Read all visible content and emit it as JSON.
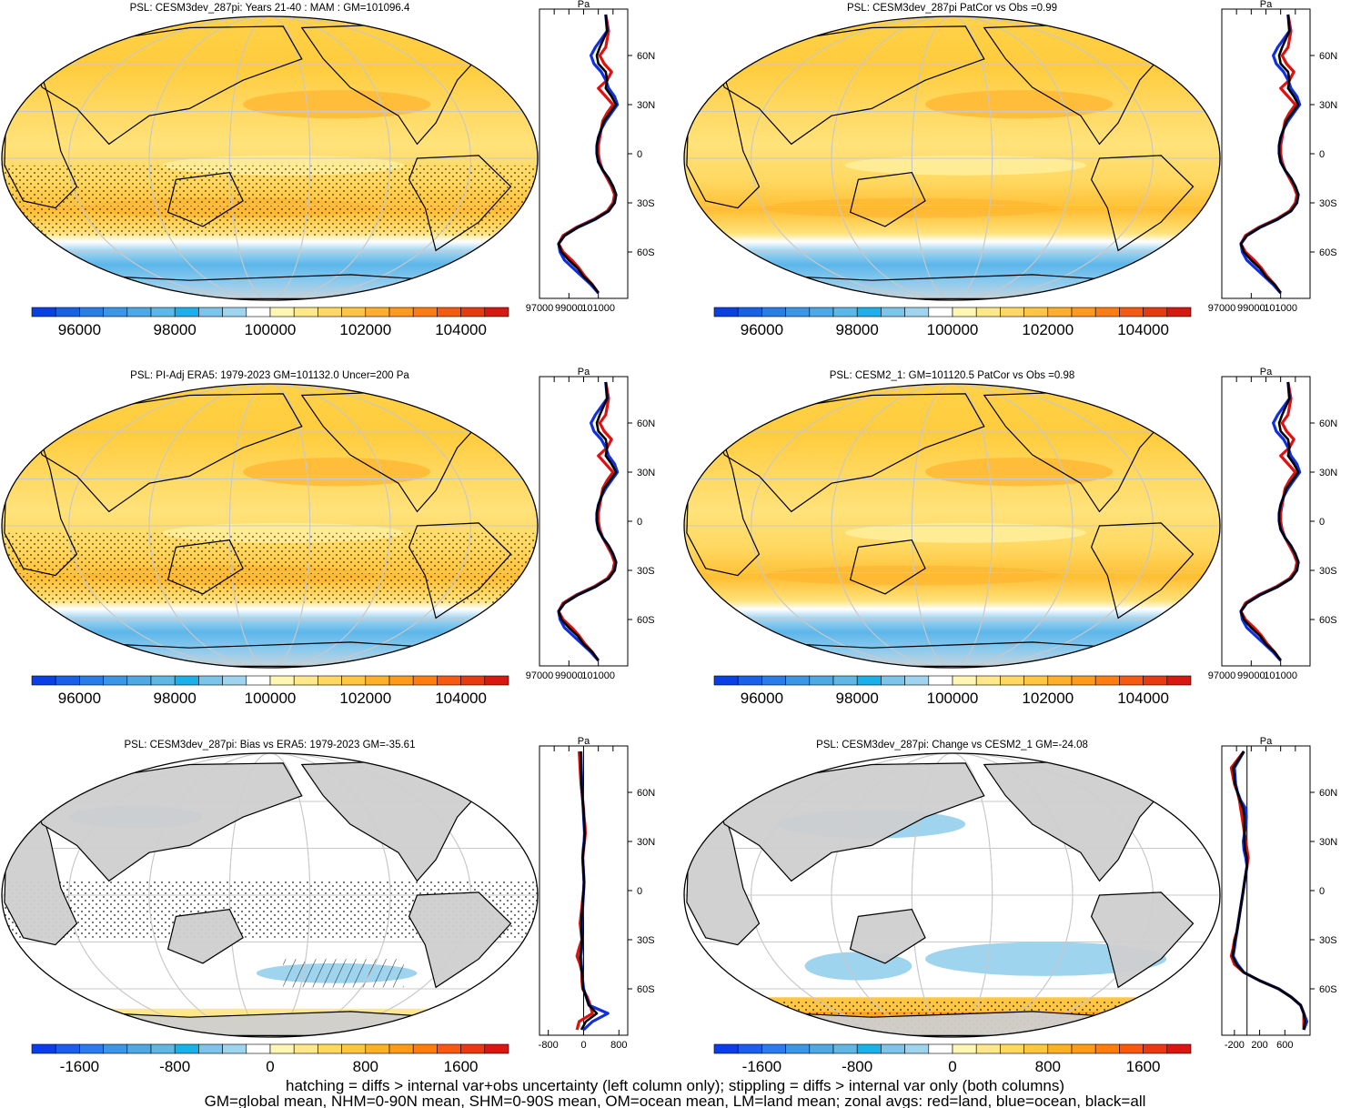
{
  "chart_data": {
    "type": "map-panel-grid",
    "palette_abs": [
      "#0b3fe6",
      "#1a5fe8",
      "#2a7ce8",
      "#3b96e6",
      "#4ea8e4",
      "#5fb7e6",
      "#1bb0ea",
      "#7cc4ea",
      "#9fd4ee",
      "#ffffff",
      "#fff6b3",
      "#ffe88a",
      "#ffd862",
      "#ffc642",
      "#ffb02a",
      "#ff9a1a",
      "#ff7d10",
      "#f55a10",
      "#e83a10",
      "#d81810"
    ],
    "panels": [
      {
        "id": "p1",
        "title": "PSL: CESM3dev_287pi: Years 21-40 : MAM : GM=101096.4",
        "kind": "abs",
        "colorbar_labels": [
          "96000",
          "98000",
          "100000",
          "102000",
          "104000"
        ],
        "lat_labels": [
          "60N",
          "30N",
          "0",
          "30S",
          "60S"
        ],
        "zonal_unit": "Pa",
        "zonal_xticks": [
          "97000",
          "99000",
          "101000"
        ],
        "zonal_range": [
          97000,
          103000
        ]
      },
      {
        "id": "p2",
        "title": "PSL: CESM3dev_287pi PatCor vs Obs =0.99",
        "kind": "abs",
        "colorbar_labels": [
          "96000",
          "98000",
          "100000",
          "102000",
          "104000"
        ],
        "lat_labels": [
          "60N",
          "30N",
          "0",
          "30S",
          "60S"
        ],
        "zonal_unit": "Pa",
        "zonal_xticks": [
          "97000",
          "99000",
          "101000"
        ],
        "zonal_range": [
          97000,
          103000
        ]
      },
      {
        "id": "p3",
        "title": "PSL: PI-Adj ERA5: 1979-2023 GM=101132.0 Uncer=200 Pa",
        "kind": "abs",
        "colorbar_labels": [
          "96000",
          "98000",
          "100000",
          "102000",
          "104000"
        ],
        "lat_labels": [
          "60N",
          "30N",
          "0",
          "30S",
          "60S"
        ],
        "zonal_unit": "Pa",
        "zonal_xticks": [
          "97000",
          "99000",
          "101000"
        ],
        "zonal_range": [
          97000,
          103000
        ]
      },
      {
        "id": "p4",
        "title": "PSL: CESM2_1: GM=101120.5 PatCor vs Obs =0.98",
        "kind": "abs",
        "colorbar_labels": [
          "96000",
          "98000",
          "100000",
          "102000",
          "104000"
        ],
        "lat_labels": [
          "60N",
          "30N",
          "0",
          "30S",
          "60S"
        ],
        "zonal_unit": "Pa",
        "zonal_xticks": [
          "97000",
          "99000",
          "101000"
        ],
        "zonal_range": [
          97000,
          103000
        ]
      },
      {
        "id": "p5",
        "title": "PSL: CESM3dev_287pi: Bias vs ERA5: 1979-2023 GM=-35.61",
        "kind": "diff",
        "colorbar_labels": [
          "-1600",
          "-800",
          "0",
          "800",
          "1600"
        ],
        "lat_labels": [
          "60N",
          "30N",
          "0",
          "30S",
          "60S"
        ],
        "zonal_unit": "Pa",
        "zonal_xticks": [
          "-800",
          "0",
          "800"
        ],
        "zonal_range": [
          -1000,
          1000
        ]
      },
      {
        "id": "p6",
        "title": "PSL: CESM3dev_287pi: Change vs CESM2_1 GM=-24.08",
        "kind": "diff",
        "colorbar_labels": [
          "-1600",
          "-800",
          "0",
          "800",
          "1600"
        ],
        "lat_labels": [
          "60N",
          "30N",
          "0",
          "30S",
          "60S"
        ],
        "zonal_unit": "Pa",
        "zonal_xticks": [
          "-200",
          "200",
          "600"
        ],
        "zonal_range": [
          -400,
          1000
        ]
      }
    ],
    "zonal_series": [
      {
        "name": "land",
        "color": "#e01010"
      },
      {
        "name": "ocean",
        "color": "#1030e0"
      },
      {
        "name": "all",
        "color": "#000000"
      }
    ],
    "zonal_abs_profile": {
      "lat": [
        85,
        75,
        65,
        60,
        55,
        50,
        45,
        40,
        35,
        30,
        25,
        20,
        15,
        10,
        5,
        0,
        -5,
        -10,
        -15,
        -20,
        -25,
        -30,
        -35,
        -40,
        -45,
        -50,
        -55,
        -60,
        -65,
        -70,
        -75,
        -80,
        -85
      ],
      "land": [
        101500,
        101700,
        101500,
        101100,
        101400,
        101900,
        101600,
        101000,
        101500,
        102000,
        101600,
        101300,
        101200,
        101100,
        101000,
        101000,
        101100,
        101300,
        101600,
        101900,
        102100,
        102000,
        101600,
        100700,
        99500,
        98600,
        98300,
        98600,
        99200,
        99700,
        100100,
        100600,
        101000
      ],
      "ocean": [
        101500,
        101600,
        100800,
        100500,
        100700,
        101200,
        101500,
        101700,
        102100,
        102300,
        101900,
        101500,
        101200,
        101000,
        100900,
        100900,
        101000,
        101300,
        101700,
        102000,
        102200,
        102100,
        101700,
        100800,
        99600,
        98700,
        98300,
        98400,
        98700,
        99300,
        99900,
        100500,
        101000
      ],
      "all": [
        101500,
        101600,
        101100,
        100900,
        101000,
        101500,
        101600,
        101500,
        101900,
        102200,
        101800,
        101400,
        101200,
        101000,
        100900,
        100900,
        101000,
        101300,
        101700,
        102000,
        102200,
        102100,
        101700,
        100800,
        99600,
        98700,
        98300,
        98500,
        99000,
        99600,
        100000,
        100600,
        101000
      ]
    },
    "zonal_bias_profile": {
      "lat": [
        85,
        75,
        65,
        60,
        55,
        50,
        45,
        40,
        35,
        30,
        25,
        20,
        15,
        10,
        5,
        0,
        -5,
        -10,
        -15,
        -20,
        -25,
        -30,
        -35,
        -40,
        -45,
        -50,
        -55,
        -60,
        -65,
        -70,
        -75,
        -80,
        -85
      ],
      "land": [
        -100,
        -80,
        -60,
        -40,
        -20,
        0,
        10,
        30,
        40,
        20,
        0,
        -20,
        -10,
        0,
        10,
        0,
        -20,
        -40,
        -60,
        -80,
        -60,
        -40,
        -100,
        -150,
        -80,
        -40,
        -40,
        -20,
        80,
        150,
        200,
        -100,
        -150
      ],
      "ocean": [
        -60,
        -50,
        -40,
        -30,
        -20,
        -10,
        0,
        10,
        20,
        10,
        -10,
        -20,
        -10,
        0,
        10,
        0,
        -10,
        -20,
        -30,
        -40,
        -40,
        -30,
        -40,
        -60,
        -50,
        -30,
        -20,
        0,
        60,
        120,
        550,
        200,
        0
      ],
      "all": [
        -70,
        -60,
        -45,
        -35,
        -20,
        -5,
        5,
        15,
        25,
        15,
        -5,
        -20,
        -10,
        0,
        10,
        0,
        -15,
        -25,
        -40,
        -50,
        -45,
        -35,
        -50,
        -80,
        -60,
        -35,
        -25,
        -10,
        60,
        120,
        300,
        50,
        -50
      ]
    },
    "zonal_change_profile": {
      "lat": [
        85,
        75,
        65,
        60,
        55,
        50,
        45,
        40,
        35,
        30,
        25,
        20,
        15,
        10,
        5,
        0,
        -5,
        -10,
        -15,
        -20,
        -25,
        -30,
        -35,
        -40,
        -45,
        -50,
        -55,
        -60,
        -65,
        -70,
        -75,
        -80,
        -85
      ],
      "land": [
        -50,
        -250,
        -200,
        -150,
        -120,
        -100,
        -80,
        -60,
        -40,
        -20,
        0,
        20,
        0,
        -20,
        -40,
        -60,
        -80,
        -100,
        -120,
        -140,
        -160,
        -200,
        -220,
        -250,
        -200,
        -50,
        200,
        500,
        700,
        850,
        900,
        900,
        900
      ],
      "ocean": [
        -50,
        -200,
        -180,
        -150,
        -100,
        -20,
        -10,
        -20,
        -40,
        -60,
        -50,
        -20,
        0,
        -20,
        -40,
        -60,
        -80,
        -100,
        -120,
        -140,
        -160,
        -180,
        -200,
        -220,
        -150,
        -50,
        200,
        500,
        700,
        850,
        900,
        950,
        900
      ],
      "all": [
        -50,
        -220,
        -190,
        -150,
        -110,
        -60,
        -40,
        -40,
        -40,
        -40,
        -30,
        0,
        0,
        -20,
        -40,
        -60,
        -80,
        -100,
        -120,
        -140,
        -160,
        -190,
        -210,
        -230,
        -170,
        -50,
        200,
        500,
        700,
        850,
        900,
        920,
        900
      ]
    }
  },
  "footer": {
    "line1": "hatching = diffs > internal var+obs uncertainty (left column only); stippling = diffs > internal var only (both columns)",
    "line2": "GM=global mean, NHM=0-90N mean, SHM=0-90S mean, OM=ocean mean, LM=land mean; zonal avgs: red=land, blue=ocean, black=all"
  }
}
